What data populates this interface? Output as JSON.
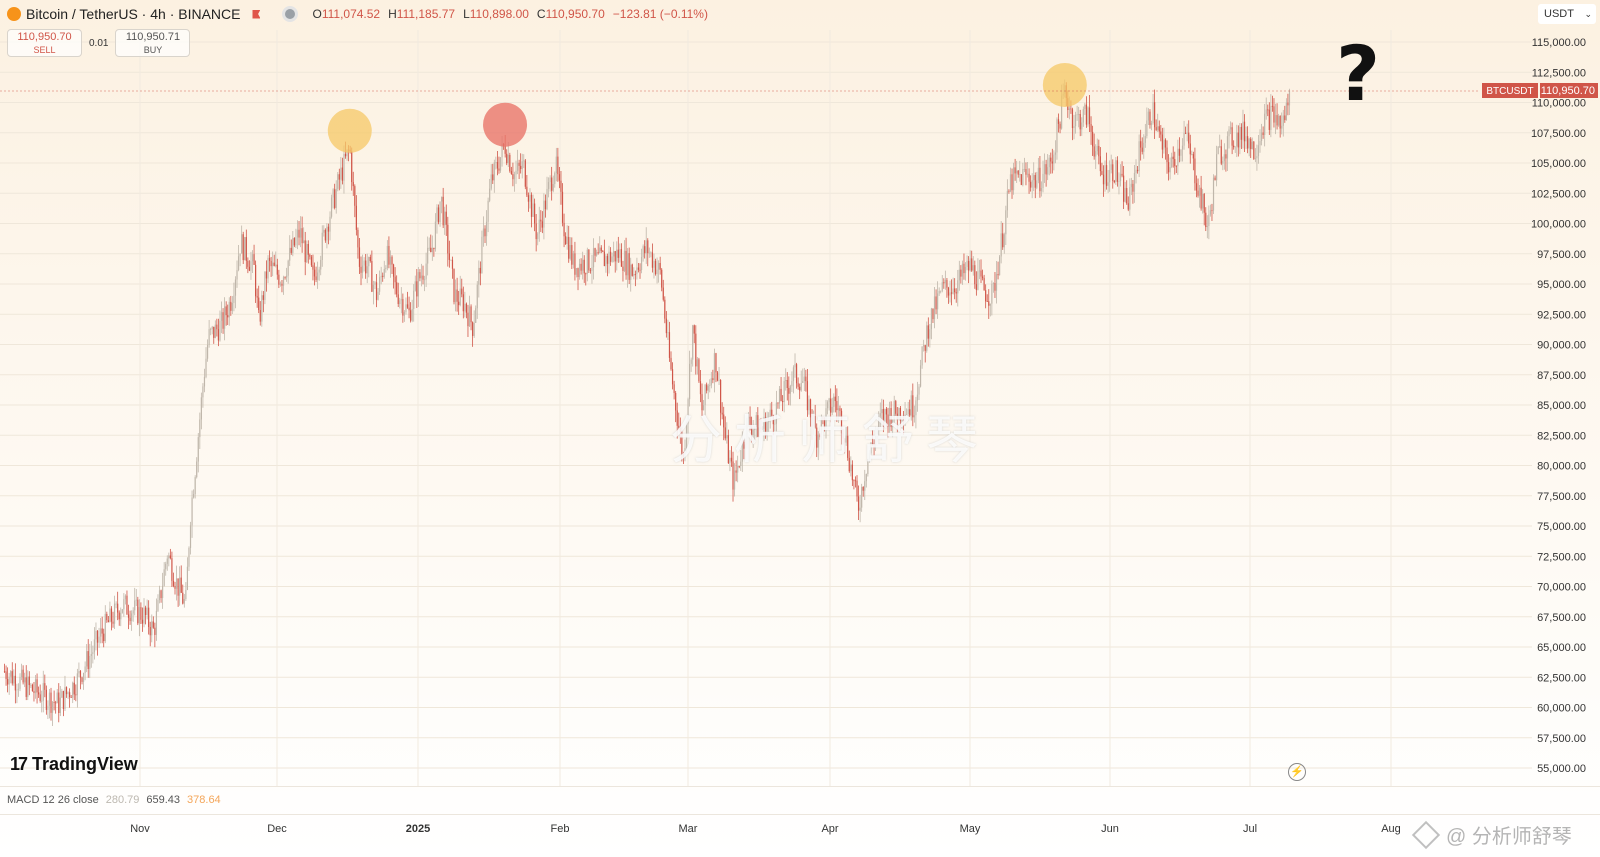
{
  "header": {
    "title": "Bitcoin / TetherUS · 4h · BINANCE",
    "ohlc": [
      {
        "label": "O",
        "value": "111,074.52"
      },
      {
        "label": "H",
        "value": "111,185.77"
      },
      {
        "label": "L",
        "value": "110,898.00"
      },
      {
        "label": "C",
        "value": "110,950.70"
      }
    ],
    "change": "−123.81 (−0.11%)",
    "currency": "USDT"
  },
  "trade": {
    "sell_price": "110,950.70",
    "sell_label": "SELL",
    "spread": "0.01",
    "buy_price": "110,950.71",
    "buy_label": "BUY"
  },
  "annotation": {
    "question_mark": "?"
  },
  "watermark": "分析师舒琴",
  "branding": {
    "logo_text": "TradingView"
  },
  "indicator": {
    "name": "MACD 12 26 close",
    "values": [
      "280.79",
      "659.43",
      "378.64"
    ]
  },
  "footer_watermark": "@ 分析师舒琴",
  "colors": {
    "down": "#d05548",
    "up": "#bfb6aa",
    "accent_orange": "#f4a65a",
    "marker_yellow": "#f6c865",
    "marker_red": "#e8766a"
  },
  "chart_data": {
    "type": "candlestick",
    "symbol": "BTCUSDT",
    "timeframe": "4h",
    "last_price_label": "110,950.70",
    "y_ticks": [
      "115,000.00",
      "112,500.00",
      "110,000.00",
      "107,500.00",
      "105,000.00",
      "102,500.00",
      "100,000.00",
      "97,500.00",
      "95,000.00",
      "92,500.00",
      "90,000.00",
      "87,500.00",
      "85,000.00",
      "82,500.00",
      "80,000.00",
      "77,500.00",
      "75,000.00",
      "72,500.00",
      "70,000.00",
      "67,500.00",
      "65,000.00",
      "62,500.00",
      "60,000.00",
      "57,500.00",
      "55,000.00"
    ],
    "ylim": [
      54000,
      116500
    ],
    "x_ticks": [
      "Nov",
      "Dec",
      "2025",
      "Feb",
      "Mar",
      "Apr",
      "May",
      "Jun",
      "Jul",
      "Aug"
    ],
    "series": [
      {
        "values": [
          {
            "x": "Oct 17",
            "y": 63000
          },
          {
            "x": "Oct 20",
            "y": 61500
          },
          {
            "x": "Oct 23",
            "y": 60300
          },
          {
            "x": "Oct 25",
            "y": 62200
          },
          {
            "x": "Oct 28",
            "y": 66500
          },
          {
            "x": "Oct 30",
            "y": 68500
          },
          {
            "x": "Nov 2",
            "y": 67600
          },
          {
            "x": "Nov 4",
            "y": 66300
          },
          {
            "x": "Nov 5",
            "y": 68200
          },
          {
            "x": "Nov 7",
            "y": 72800
          },
          {
            "x": "Nov 9",
            "y": 70300
          },
          {
            "x": "Nov 11",
            "y": 68400
          },
          {
            "x": "Nov 12",
            "y": 75800
          },
          {
            "x": "Nov 13",
            "y": 79500
          },
          {
            "x": "Nov 14",
            "y": 83500
          },
          {
            "x": "Nov 15",
            "y": 87500
          },
          {
            "x": "Nov 16",
            "y": 90600
          },
          {
            "x": "Nov 19",
            "y": 91700
          },
          {
            "x": "Nov 21",
            "y": 93800
          },
          {
            "x": "Nov 23",
            "y": 98500
          },
          {
            "x": "Nov 26",
            "y": 96200
          },
          {
            "x": "Nov 27",
            "y": 91800
          },
          {
            "x": "Nov 29",
            "y": 96600
          },
          {
            "x": "Dec 2",
            "y": 95500
          },
          {
            "x": "Dec 5",
            "y": 98400
          },
          {
            "x": "Dec 6",
            "y": 99300
          },
          {
            "x": "Dec 9",
            "y": 95300
          },
          {
            "x": "Dec 12",
            "y": 100000
          },
          {
            "x": "Dec 15",
            "y": 104000
          },
          {
            "x": "Dec 17",
            "y": 106200
          },
          {
            "x": "Dec 19",
            "y": 96900
          },
          {
            "x": "Dec 21",
            "y": 96500
          },
          {
            "x": "Dec 23",
            "y": 94000
          },
          {
            "x": "Dec 25",
            "y": 97500
          },
          {
            "x": "Dec 27",
            "y": 94700
          },
          {
            "x": "Dec 30",
            "y": 92500
          },
          {
            "x": "Jan 1",
            "y": 95200
          },
          {
            "x": "Jan 4",
            "y": 97800
          },
          {
            "x": "Jan 6",
            "y": 102200
          },
          {
            "x": "Jan 9",
            "y": 94000
          },
          {
            "x": "Jan 11",
            "y": 93500
          },
          {
            "x": "Jan 13",
            "y": 91500
          },
          {
            "x": "Jan 15",
            "y": 98000
          },
          {
            "x": "Jan 17",
            "y": 103500
          },
          {
            "x": "Jan 20",
            "y": 106500
          },
          {
            "x": "Jan 22",
            "y": 104000
          },
          {
            "x": "Jan 24",
            "y": 104800
          },
          {
            "x": "Jan 27",
            "y": 99000
          },
          {
            "x": "Jan 31",
            "y": 105000
          },
          {
            "x": "Feb 2",
            "y": 99500
          },
          {
            "x": "Feb 4",
            "y": 96500
          },
          {
            "x": "Feb 7",
            "y": 96800
          },
          {
            "x": "Feb 10",
            "y": 97000
          },
          {
            "x": "Feb 14",
            "y": 97500
          },
          {
            "x": "Feb 17",
            "y": 96000
          },
          {
            "x": "Feb 20",
            "y": 98000
          },
          {
            "x": "Feb 23",
            "y": 95800
          },
          {
            "x": "Feb 25",
            "y": 88500
          },
          {
            "x": "Feb 28",
            "y": 80500
          },
          {
            "x": "Mar 2",
            "y": 91500
          },
          {
            "x": "Mar 4",
            "y": 84500
          },
          {
            "x": "Mar 7",
            "y": 89000
          },
          {
            "x": "Mar 9",
            "y": 82500
          },
          {
            "x": "Mar 11",
            "y": 78500
          },
          {
            "x": "Mar 14",
            "y": 83500
          },
          {
            "x": "Mar 17",
            "y": 83000
          },
          {
            "x": "Mar 20",
            "y": 84500
          },
          {
            "x": "Mar 24",
            "y": 87500
          },
          {
            "x": "Mar 26",
            "y": 87000
          },
          {
            "x": "Mar 29",
            "y": 82500
          },
          {
            "x": "Apr 2",
            "y": 85500
          },
          {
            "x": "Apr 4",
            "y": 83000
          },
          {
            "x": "Apr 7",
            "y": 76500
          },
          {
            "x": "Apr 9",
            "y": 80500
          },
          {
            "x": "Apr 12",
            "y": 84000
          },
          {
            "x": "Apr 16",
            "y": 84500
          },
          {
            "x": "Apr 19",
            "y": 85000
          },
          {
            "x": "Apr 22",
            "y": 91500
          },
          {
            "x": "Apr 25",
            "y": 94500
          },
          {
            "x": "Apr 28",
            "y": 95000
          },
          {
            "x": "May 1",
            "y": 96500
          },
          {
            "x": "May 4",
            "y": 94500
          },
          {
            "x": "May 6",
            "y": 94000
          },
          {
            "x": "May 8",
            "y": 98500
          },
          {
            "x": "May 10",
            "y": 103500
          },
          {
            "x": "May 13",
            "y": 104000
          },
          {
            "x": "May 16",
            "y": 103500
          },
          {
            "x": "May 19",
            "y": 105000
          },
          {
            "x": "May 21",
            "y": 109000
          },
          {
            "x": "May 22",
            "y": 111000
          },
          {
            "x": "May 24",
            "y": 108500
          },
          {
            "x": "May 27",
            "y": 109000
          },
          {
            "x": "May 30",
            "y": 104000
          },
          {
            "x": "Jun 2",
            "y": 104500
          },
          {
            "x": "Jun 5",
            "y": 101500
          },
          {
            "x": "Jun 7",
            "y": 105500
          },
          {
            "x": "Jun 10",
            "y": 109500
          },
          {
            "x": "Jun 12",
            "y": 106500
          },
          {
            "x": "Jun 14",
            "y": 104500
          },
          {
            "x": "Jun 17",
            "y": 107500
          },
          {
            "x": "Jun 19",
            "y": 104500
          },
          {
            "x": "Jun 22",
            "y": 99500
          },
          {
            "x": "Jun 24",
            "y": 105500
          },
          {
            "x": "Jun 27",
            "y": 107000
          },
          {
            "x": "Jun 30",
            "y": 107500
          },
          {
            "x": "Jul 2",
            "y": 106000
          },
          {
            "x": "Jul 4",
            "y": 108500
          },
          {
            "x": "Jul 6",
            "y": 109000
          },
          {
            "x": "Jul 8",
            "y": 108000
          },
          {
            "x": "Jul 9",
            "y": 109500
          },
          {
            "x": "Jul 10",
            "y": 110950
          }
        ]
      }
    ],
    "grid": true,
    "legend": "none"
  }
}
